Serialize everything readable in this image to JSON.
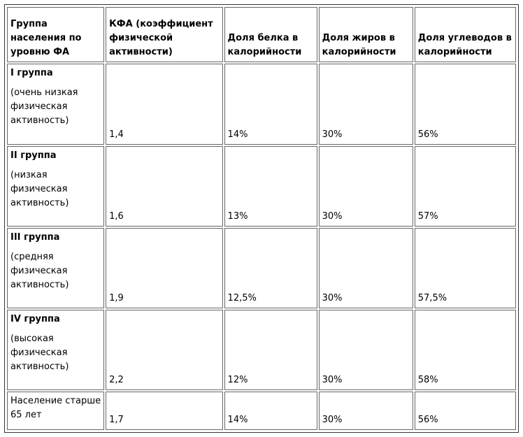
{
  "table": {
    "headers": [
      "Группа населения по уровню ФА",
      "КФА (коэффициент физической активности)",
      "Доля белка в калорийности",
      "Доля жиров в калорийности",
      "Доля углеводов в калорийности"
    ],
    "rows": [
      {
        "title": "I группа",
        "desc": "(очень низкая физическая активность)",
        "kfa": "1,4",
        "protein": "14%",
        "fat": "30%",
        "carbs": "56%"
      },
      {
        "title": "II группа",
        "desc": "(низкая физическая активность)",
        "kfa": "1,6",
        "protein": "13%",
        "fat": "30%",
        "carbs": "57%"
      },
      {
        "title": "III группа",
        "desc": "(средняя физическая активность)",
        "kfa": "1,9",
        "protein": "12,5%",
        "fat": "30%",
        "carbs": "57,5%"
      },
      {
        "title": "IV группа",
        "desc": "(высокая физическая активность)",
        "kfa": "2,2",
        "protein": "12%",
        "fat": "30%",
        "carbs": "58%"
      },
      {
        "title": "",
        "desc": "Население старше 65 лет",
        "kfa": "1,7",
        "protein": "14%",
        "fat": "30%",
        "carbs": "56%"
      }
    ]
  }
}
